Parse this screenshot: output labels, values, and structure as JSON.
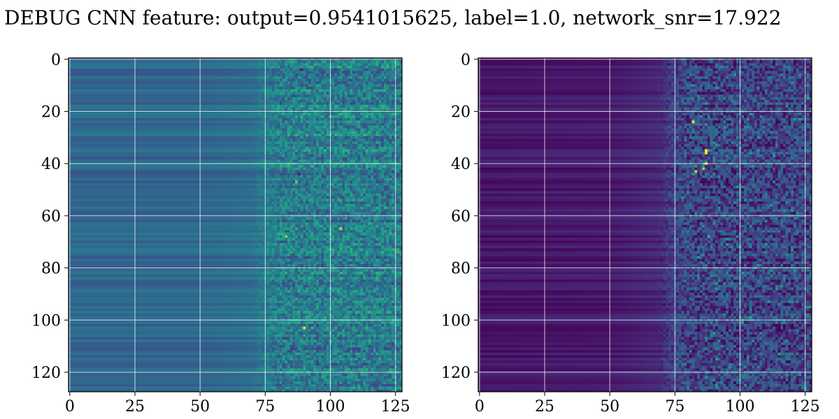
{
  "title": "DEBUG CNN feature: output=0.9541015625, label=1.0, network_snr=17.922",
  "colormap": "viridis",
  "colors": {
    "grid": "#ffffff",
    "axis": "#000000"
  },
  "chart_data": [
    {
      "type": "heatmap",
      "name": "",
      "grid": true,
      "xlim": [
        -0.5,
        127.5
      ],
      "ylim": [
        127.5,
        -0.5
      ],
      "y_inverted": true,
      "shape": [
        128,
        128
      ],
      "value_range": [
        0,
        1
      ],
      "xticks": [
        0,
        25,
        50,
        75,
        100,
        125
      ],
      "xtick_labels": [
        "0",
        "25",
        "50",
        "75",
        "100",
        "125"
      ],
      "yticks": [
        0,
        20,
        40,
        60,
        80,
        100,
        120
      ],
      "ytick_labels": [
        "0",
        "20",
        "40",
        "60",
        "80",
        "100",
        "120"
      ],
      "column_profile": [
        [
          0,
          0.33
        ],
        [
          50,
          0.33
        ],
        [
          70,
          0.36
        ],
        [
          75,
          0.42
        ],
        [
          127,
          0.42
        ]
      ],
      "noise_onset_col": 70,
      "hot_spots": [
        [
          103,
          90,
          0.98
        ],
        [
          65,
          104,
          0.88
        ],
        [
          68,
          83,
          0.85
        ],
        [
          47,
          87,
          0.75
        ],
        [
          44,
          88,
          0.08
        ],
        [
          4,
          89,
          0.05
        ]
      ]
    },
    {
      "type": "heatmap",
      "name": "",
      "grid": true,
      "xlim": [
        -0.5,
        127.5
      ],
      "ylim": [
        127.5,
        -0.5
      ],
      "y_inverted": true,
      "shape": [
        128,
        128
      ],
      "value_range": [
        0,
        1
      ],
      "xticks": [
        0,
        25,
        50,
        75,
        100,
        125
      ],
      "xtick_labels": [
        "0",
        "25",
        "50",
        "75",
        "100",
        "125"
      ],
      "yticks": [
        0,
        20,
        40,
        60,
        80,
        100,
        120
      ],
      "ytick_labels": [
        "0",
        "20",
        "40",
        "60",
        "80",
        "100",
        "120"
      ],
      "column_profile": [
        [
          0,
          0.06
        ],
        [
          50,
          0.07
        ],
        [
          70,
          0.12
        ],
        [
          75,
          0.2
        ],
        [
          127,
          0.2
        ]
      ],
      "noise_onset_col": 68,
      "hot_spots": [
        [
          24,
          82,
          0.95
        ],
        [
          35,
          87,
          0.98
        ],
        [
          36,
          87,
          0.97
        ],
        [
          40,
          87,
          0.95
        ],
        [
          43,
          83,
          0.9
        ],
        [
          42,
          86,
          0.85
        ],
        [
          68,
          88,
          0.7
        ],
        [
          76,
          84,
          0.6
        ]
      ]
    }
  ]
}
